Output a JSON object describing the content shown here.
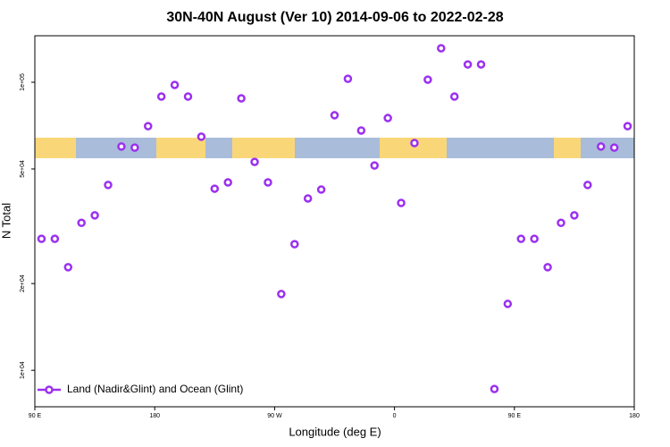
{
  "chart_data": {
    "type": "scatter",
    "title": "30N-40N August (Ver 10)   2014-09-06 to 2022-02-28",
    "x_label": "Longitude (deg E)",
    "y_label": "N Total",
    "log_y": true,
    "xlim": [
      90,
      540
    ],
    "ylim": [
      7470,
      145000
    ],
    "xticks": [
      {
        "value": 90,
        "label": "90 E"
      },
      180,
      {
        "value": 270,
        "label": "90 W"
      },
      {
        "value": 360,
        "label": "0"
      },
      {
        "value": 450,
        "label": "90 E"
      },
      {
        "value": 540,
        "label": "180"
      }
    ],
    "yticks": [
      {
        "value": 10000,
        "label": "1e+04"
      },
      {
        "value": 20000,
        "label": "2e+04"
      },
      {
        "value": 50000,
        "label": "5e+04"
      },
      {
        "value": 100000,
        "label": "1e+05"
      }
    ],
    "legend": "bottom-left",
    "series": [
      {
        "name": "Land (Nadir&Glint) and Ocean (Glint)",
        "color": "#9b30f0",
        "x": [
          95,
          105,
          115,
          125,
          135,
          145,
          155,
          165,
          175,
          185,
          195,
          205,
          215,
          225,
          235,
          245,
          255,
          265,
          275,
          285,
          295,
          305,
          315,
          325,
          335,
          345,
          355,
          365,
          375,
          385,
          395,
          405,
          415,
          425,
          435,
          445,
          455,
          465,
          475,
          485,
          495,
          505,
          515,
          525,
          535
        ],
        "values": [
          28600,
          28600,
          22800,
          32500,
          34500,
          44000,
          59800,
          59300,
          70400,
          89200,
          97900,
          89200,
          64700,
          42700,
          44900,
          87900,
          52900,
          44900,
          18400,
          27400,
          39500,
          42400,
          76800,
          102800,
          68000,
          51400,
          75100,
          38100,
          61500,
          102100,
          131200,
          89200,
          115300,
          115300,
          8610,
          17000,
          28600,
          28600,
          22800,
          32500,
          34500,
          44000,
          59800,
          59300,
          70400
        ]
      }
    ]
  }
}
